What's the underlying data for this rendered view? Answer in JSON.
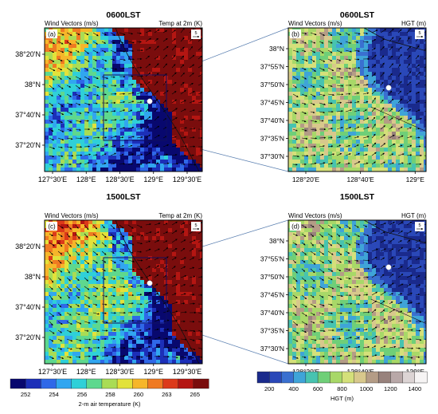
{
  "chart_data": [
    {
      "type": "heatmap",
      "panel_label": "(a)",
      "time_label": "0600LST",
      "left_title": "Wind Vectors (m/s)",
      "right_title": "Temp at 2m (K)",
      "x_ticks": [
        "127°30'E",
        "128°E",
        "128°30'E",
        "129°E",
        "129°30'E"
      ],
      "y_ticks": [
        "38°20'N",
        "38°N",
        "37°40'N",
        "37°20'N"
      ],
      "vector_ref": "5"
    },
    {
      "type": "heatmap",
      "panel_label": "(b)",
      "time_label": "0600LST",
      "left_title": "Wind Vectors (m/s)",
      "right_title": "HGT (m)",
      "x_ticks": [
        "128°20'E",
        "128°40'E",
        "129°E"
      ],
      "y_ticks": [
        "38°N",
        "37°55'N",
        "37°50'N",
        "37°45'N",
        "37°40'N",
        "37°35'N",
        "37°30'N"
      ],
      "vector_ref": "5"
    },
    {
      "type": "heatmap",
      "panel_label": "(c)",
      "time_label": "1500LST",
      "left_title": "Wind Vectors (m/s)",
      "right_title": "Temp at 2m (K)",
      "x_ticks": [
        "127°30'E",
        "128°E",
        "128°30'E",
        "129°E",
        "129°30'E"
      ],
      "y_ticks": [
        "38°20'N",
        "38°N",
        "37°40'N",
        "37°20'N"
      ],
      "vector_ref": "5"
    },
    {
      "type": "heatmap",
      "panel_label": "(d)",
      "time_label": "1500LST",
      "left_title": "Wind Vectors (m/s)",
      "right_title": "HGT (m)",
      "x_ticks": [
        "128°20'E",
        "128°40'E",
        "129°E"
      ],
      "y_ticks": [
        "38°N",
        "37°55'N",
        "37°50'N",
        "37°45'N",
        "37°40'N",
        "37°35'N",
        "37°30'N"
      ],
      "vector_ref": "5"
    }
  ],
  "colorbars": {
    "temperature": {
      "label": "2-m air temperature (K)",
      "ticks": [
        "252",
        "254",
        "256",
        "258",
        "260",
        "263",
        "265"
      ],
      "colors": [
        "#08086e",
        "#1c2fb8",
        "#2f68e8",
        "#31a6f0",
        "#2fd0d8",
        "#5ed88e",
        "#a9dc55",
        "#e2e23a",
        "#f6b62a",
        "#ef7a22",
        "#dc3a1a",
        "#b41612",
        "#7a0d0d"
      ]
    },
    "height": {
      "label": "HGT (m)",
      "ticks": [
        "200",
        "400",
        "600",
        "800",
        "1000",
        "1200",
        "1400"
      ],
      "colors": [
        "#1a2a8c",
        "#2a48b8",
        "#3a70d0",
        "#3fa4d8",
        "#47c3b0",
        "#6fcf78",
        "#a8d868",
        "#d4e07a",
        "#d8c88c",
        "#b49c86",
        "#98827c",
        "#b8a8a8",
        "#dcd4d4",
        "#f6f4f4"
      ]
    }
  }
}
